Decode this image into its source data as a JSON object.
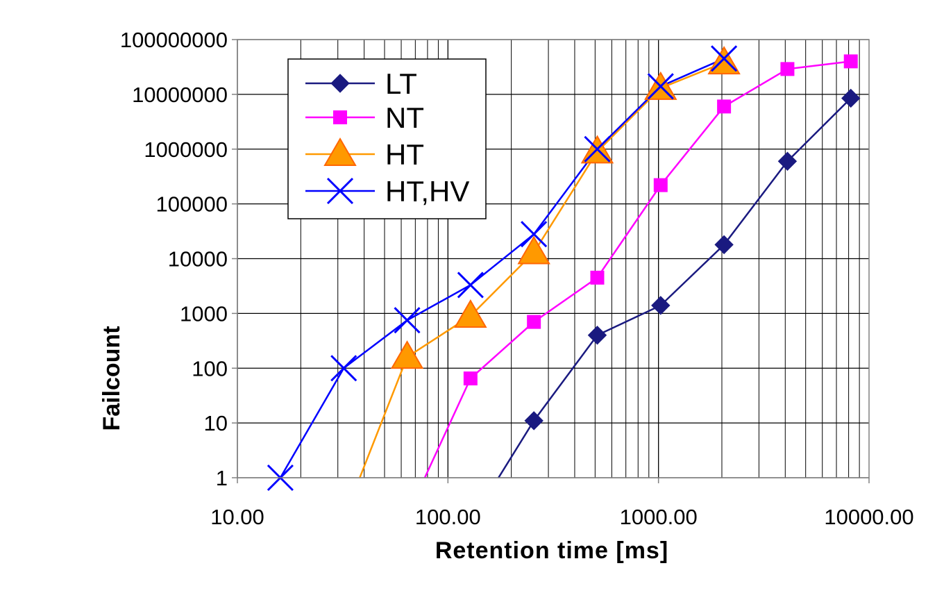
{
  "chart_data": {
    "type": "line",
    "title": "",
    "xlabel": "Retention time [ms]",
    "ylabel": "Failcount",
    "xscale": "log",
    "yscale": "log",
    "xlim": [
      10,
      10000
    ],
    "ylim": [
      1,
      100000000
    ],
    "x_tick_labels": [
      "10.00",
      "100.00",
      "1000.00",
      "10000.00"
    ],
    "x_tick_values": [
      10,
      100,
      1000,
      10000
    ],
    "y_tick_labels": [
      "1",
      "10",
      "100",
      "1000",
      "10000",
      "100000",
      "1000000",
      "10000000",
      "100000000"
    ],
    "y_tick_values": [
      1,
      10,
      100,
      1000,
      10000,
      100000,
      1000000,
      10000000,
      100000000
    ],
    "grid": {
      "x_major": true,
      "x_minor": true,
      "y_major": true
    },
    "legend_position": "top-left",
    "series": [
      {
        "name": "LT",
        "color": "#1A1A80",
        "marker": "diamond",
        "x": [
          128,
          256,
          512,
          1024,
          2048,
          4096,
          8192
        ],
        "y": [
          0.15,
          11,
          400,
          1400,
          18000,
          600000,
          8500000
        ]
      },
      {
        "name": "NT",
        "color": "#FF00FF",
        "marker": "square",
        "x": [
          64,
          128,
          256,
          512,
          1024,
          2048,
          4096,
          8192
        ],
        "y": [
          0.2,
          65,
          700,
          4500,
          220000,
          6000000,
          29000000,
          40000000
        ]
      },
      {
        "name": "HT",
        "color": "#FF9900",
        "marker": "triangle",
        "x": [
          32,
          64,
          128,
          256,
          512,
          1024,
          2048
        ],
        "y": [
          0.18,
          160,
          900,
          13000,
          900000,
          13000000,
          38000000
        ]
      },
      {
        "name": "HT,HV",
        "color": "#0000FF",
        "marker": "x",
        "x": [
          16,
          32,
          64,
          128,
          256,
          512,
          1024,
          2048
        ],
        "y": [
          1,
          100,
          750,
          3300,
          28000,
          1000000,
          14000000,
          45000000
        ]
      }
    ]
  }
}
